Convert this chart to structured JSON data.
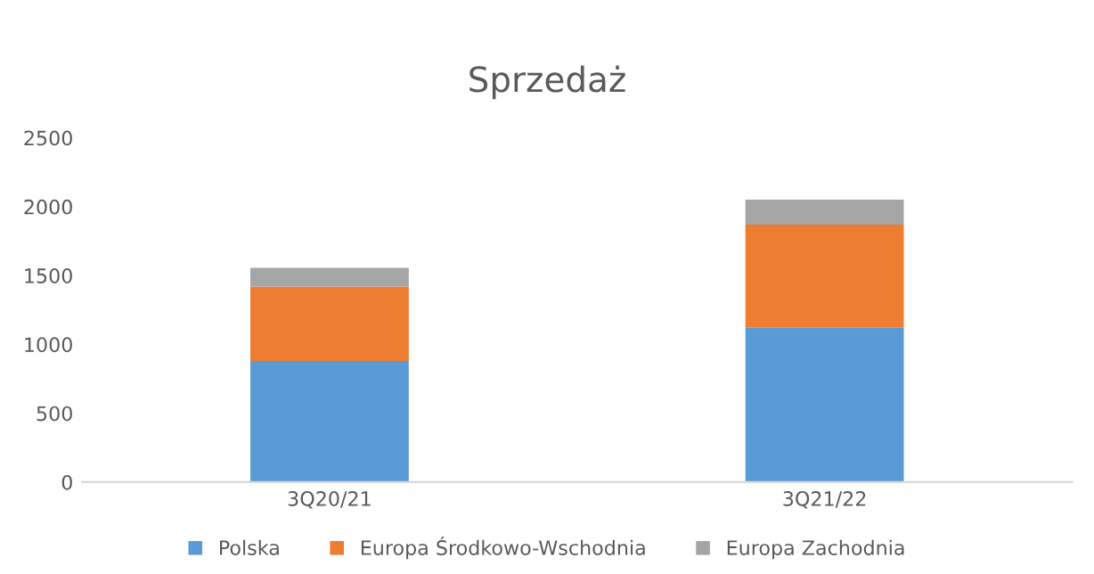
{
  "chart_data": {
    "type": "bar",
    "title": "Sprzedaż",
    "categories": [
      "3Q20/21",
      "3Q21/22"
    ],
    "stacked": true,
    "series": [
      {
        "name": "Polska",
        "color": "#5b9bd5",
        "values": [
          880,
          1120
        ]
      },
      {
        "name": "Europa Środkowo-Wschodnia",
        "color": "#ed7d31",
        "values": [
          540,
          750
        ]
      },
      {
        "name": "Europa Zachodnia",
        "color": "#a5a5a5",
        "values": [
          135,
          180
        ]
      }
    ],
    "ylim": [
      0,
      2500
    ],
    "yticks": [
      0,
      500,
      1000,
      1500,
      2000,
      2500
    ],
    "grid": false,
    "legend": "bottom"
  }
}
